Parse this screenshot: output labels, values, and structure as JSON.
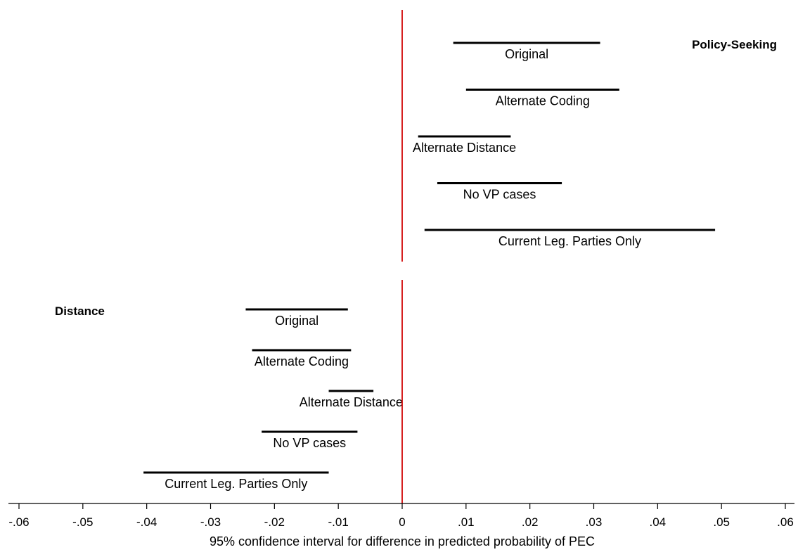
{
  "chart_data": {
    "type": "interval",
    "xlabel": "95% confidence interval for difference in predicted probability of PEC",
    "xlim": [
      -0.06,
      0.06
    ],
    "ticks": [
      {
        "value": -0.06,
        "label": "-.06"
      },
      {
        "value": -0.05,
        "label": "-.05"
      },
      {
        "value": -0.04,
        "label": "-.04"
      },
      {
        "value": -0.03,
        "label": "-.03"
      },
      {
        "value": -0.02,
        "label": "-.02"
      },
      {
        "value": -0.01,
        "label": "-.01"
      },
      {
        "value": 0,
        "label": "0"
      },
      {
        "value": 0.01,
        "label": ".01"
      },
      {
        "value": 0.02,
        "label": ".02"
      },
      {
        "value": 0.03,
        "label": ".03"
      },
      {
        "value": 0.04,
        "label": ".04"
      },
      {
        "value": 0.05,
        "label": ".05"
      },
      {
        "value": 0.06,
        "label": ".06"
      }
    ],
    "reference_line": {
      "value": 0,
      "color": "#d62020"
    },
    "groups": [
      {
        "name": "Policy-Seeking",
        "intervals": [
          {
            "label": "Original",
            "low": 0.008,
            "high": 0.031
          },
          {
            "label": "Alternate Coding",
            "low": 0.01,
            "high": 0.034
          },
          {
            "label": "Alternate Distance",
            "low": 0.0025,
            "high": 0.017
          },
          {
            "label": "No VP cases",
            "low": 0.0055,
            "high": 0.025
          },
          {
            "label": "Current Leg. Parties Only",
            "low": 0.0035,
            "high": 0.049
          }
        ]
      },
      {
        "name": "Distance",
        "intervals": [
          {
            "label": "Original",
            "low": -0.0245,
            "high": -0.0085
          },
          {
            "label": "Alternate Coding",
            "low": -0.0235,
            "high": -0.008
          },
          {
            "label": "Alternate Distance",
            "low": -0.0115,
            "high": -0.0045
          },
          {
            "label": "No VP cases",
            "low": -0.022,
            "high": -0.007
          },
          {
            "label": "Current Leg. Parties Only",
            "low": -0.0405,
            "high": -0.0115
          }
        ]
      }
    ]
  }
}
